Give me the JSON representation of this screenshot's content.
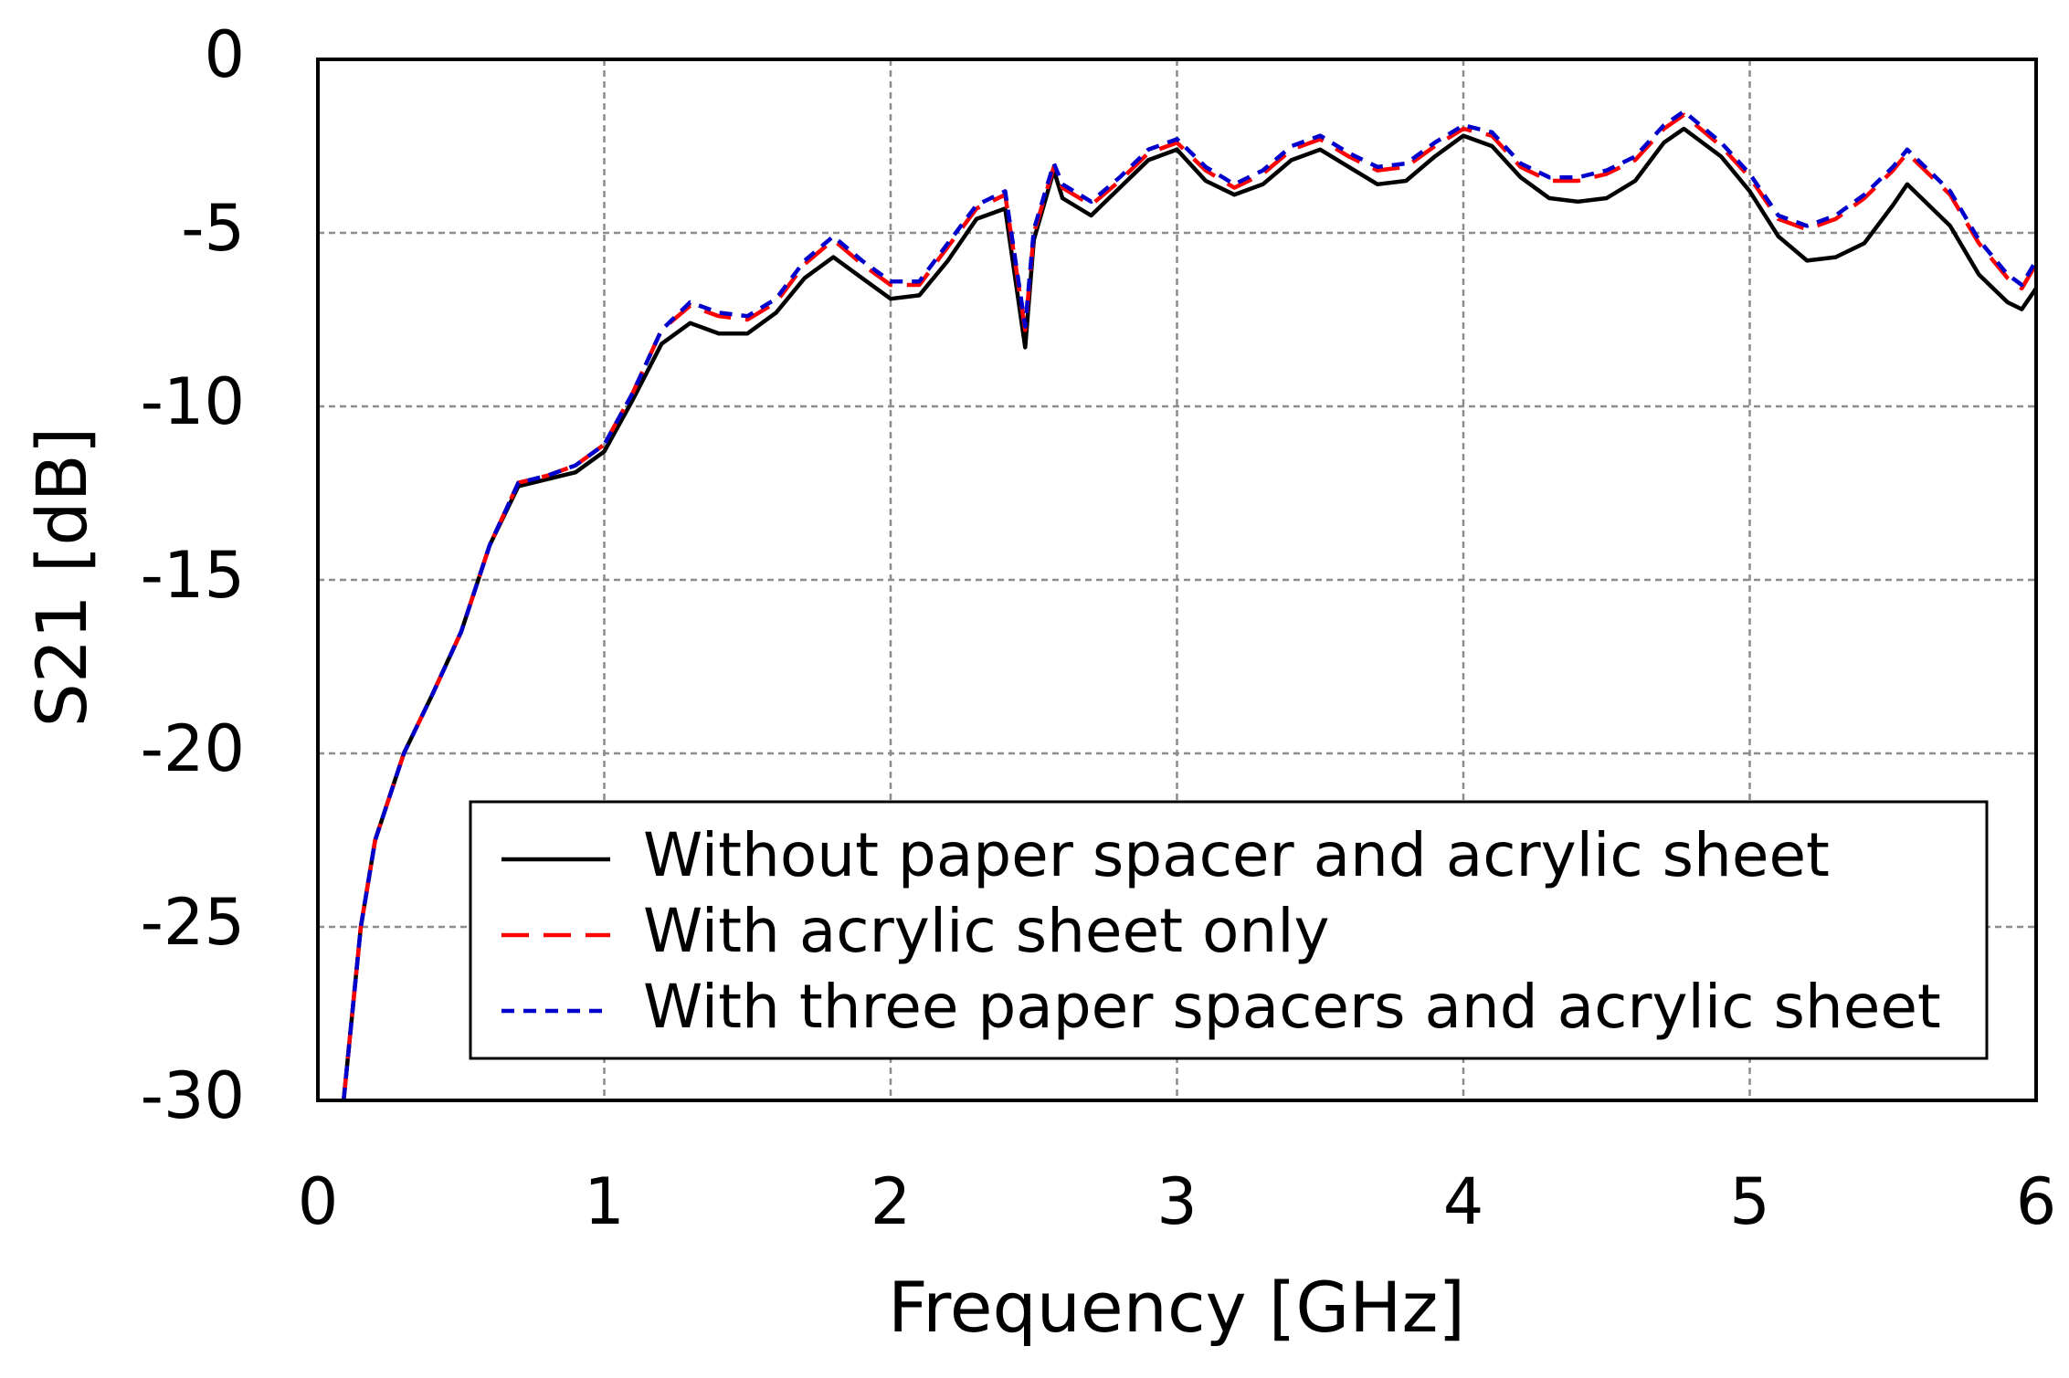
{
  "chart_data": {
    "type": "line",
    "x_label": "Frequency [GHz]",
    "y_label": "S21 [dB]",
    "xlim": [
      0,
      6
    ],
    "ylim": [
      -30,
      0
    ],
    "xticks": [
      0,
      1,
      2,
      3,
      4,
      5,
      6
    ],
    "yticks": [
      0,
      -5,
      -10,
      -15,
      -20,
      -25,
      -30
    ],
    "grid": true,
    "legend": "lower right",
    "x": [
      0.09,
      0.15,
      0.2,
      0.3,
      0.4,
      0.5,
      0.6,
      0.7,
      0.8,
      0.9,
      1.0,
      1.1,
      1.2,
      1.3,
      1.4,
      1.5,
      1.6,
      1.7,
      1.8,
      1.9,
      2.0,
      2.1,
      2.2,
      2.3,
      2.4,
      2.47,
      2.5,
      2.57,
      2.6,
      2.7,
      2.8,
      2.9,
      3.0,
      3.1,
      3.2,
      3.3,
      3.4,
      3.5,
      3.6,
      3.7,
      3.8,
      3.9,
      4.0,
      4.1,
      4.2,
      4.3,
      4.4,
      4.5,
      4.6,
      4.7,
      4.77,
      4.9,
      5.0,
      5.1,
      5.2,
      5.3,
      5.4,
      5.5,
      5.55,
      5.7,
      5.8,
      5.9,
      5.95,
      6.0
    ],
    "series": [
      {
        "name": "Without paper spacer and acrylic sheet",
        "color": "#000000",
        "dash": "solid",
        "values": [
          -30,
          -25,
          -22.5,
          -20,
          -18.3,
          -16.5,
          -14,
          -12.3,
          -12.1,
          -11.9,
          -11.3,
          -9.8,
          -8.2,
          -7.6,
          -7.9,
          -7.9,
          -7.3,
          -6.3,
          -5.7,
          -6.3,
          -6.9,
          -6.8,
          -5.8,
          -4.6,
          -4.3,
          -8.3,
          -5.2,
          -3.2,
          -4.0,
          -4.5,
          -3.7,
          -2.9,
          -2.6,
          -3.5,
          -3.9,
          -3.6,
          -2.9,
          -2.6,
          -3.1,
          -3.6,
          -3.5,
          -2.8,
          -2.2,
          -2.5,
          -3.4,
          -4.0,
          -4.1,
          -4.0,
          -3.5,
          -2.4,
          -2.0,
          -2.8,
          -3.8,
          -5.1,
          -5.8,
          -5.7,
          -5.3,
          -4.2,
          -3.6,
          -4.8,
          -6.2,
          -7.0,
          -7.2,
          -6.6
        ]
      },
      {
        "name": "With acrylic sheet only",
        "color": "#ff0000",
        "dash": "long",
        "values": [
          -30,
          -25,
          -22.5,
          -20,
          -18.3,
          -16.5,
          -14,
          -12.2,
          -12.0,
          -11.7,
          -11.1,
          -9.6,
          -7.8,
          -7.1,
          -7.4,
          -7.5,
          -7.0,
          -5.9,
          -5.2,
          -5.9,
          -6.5,
          -6.5,
          -5.4,
          -4.3,
          -3.9,
          -7.8,
          -5.0,
          -3.1,
          -3.7,
          -4.2,
          -3.5,
          -2.7,
          -2.4,
          -3.2,
          -3.7,
          -3.3,
          -2.6,
          -2.3,
          -2.8,
          -3.2,
          -3.1,
          -2.5,
          -2.0,
          -2.2,
          -3.1,
          -3.5,
          -3.5,
          -3.3,
          -2.9,
          -2.0,
          -1.6,
          -2.5,
          -3.4,
          -4.6,
          -4.9,
          -4.6,
          -4.0,
          -3.2,
          -2.7,
          -3.9,
          -5.3,
          -6.3,
          -6.6,
          -5.9
        ]
      },
      {
        "name": "With three paper spacers and acrylic sheet",
        "color": "#0000cc",
        "dash": "short",
        "values": [
          -30,
          -25,
          -22.5,
          -20,
          -18.3,
          -16.5,
          -14,
          -12.2,
          -12.0,
          -11.7,
          -11.1,
          -9.6,
          -7.8,
          -7.0,
          -7.3,
          -7.4,
          -6.9,
          -5.8,
          -5.1,
          -5.8,
          -6.4,
          -6.4,
          -5.3,
          -4.2,
          -3.8,
          -7.7,
          -4.9,
          -3.0,
          -3.6,
          -4.1,
          -3.4,
          -2.6,
          -2.3,
          -3.1,
          -3.6,
          -3.2,
          -2.5,
          -2.2,
          -2.7,
          -3.1,
          -3.0,
          -2.4,
          -1.9,
          -2.1,
          -3.0,
          -3.4,
          -3.4,
          -3.2,
          -2.8,
          -1.9,
          -1.5,
          -2.4,
          -3.3,
          -4.5,
          -4.8,
          -4.5,
          -3.9,
          -3.1,
          -2.6,
          -3.8,
          -5.2,
          -6.2,
          -6.5,
          -5.8
        ]
      }
    ]
  }
}
